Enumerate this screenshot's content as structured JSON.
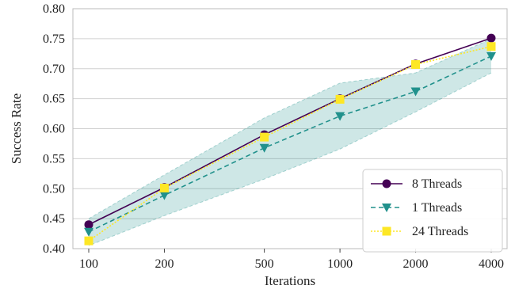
{
  "chart_data": {
    "type": "line",
    "xlabel": "Iterations",
    "ylabel": "Success Rate",
    "x_scale": "log",
    "x": [
      100,
      200,
      500,
      1000,
      2000,
      4000
    ],
    "x_tick_labels": [
      "100",
      "200",
      "500",
      "1000",
      "2000",
      "4000"
    ],
    "ylim": [
      0.4,
      0.8
    ],
    "y_ticks": [
      0.4,
      0.45,
      0.5,
      0.55,
      0.6,
      0.65,
      0.7,
      0.75,
      0.8
    ],
    "y_tick_labels": [
      "0.40",
      "0.45",
      "0.50",
      "0.55",
      "0.60",
      "0.65",
      "0.70",
      "0.75",
      "0.80"
    ],
    "grid": "horizontal",
    "legend_position": "bottom-right",
    "series": [
      {
        "name": "8 Threads",
        "values": [
          0.44,
          0.502,
          0.59,
          0.65,
          0.708,
          0.751
        ],
        "color": "#440154",
        "line_style": "solid",
        "marker": "circle"
      },
      {
        "name": "1 Threads",
        "values": [
          0.428,
          0.489,
          0.568,
          0.621,
          0.662,
          0.721
        ],
        "color": "#21918c",
        "line_style": "dashed",
        "marker": "triangle-down",
        "band": {
          "lower": [
            0.405,
            0.455,
            0.516,
            0.566,
            0.628,
            0.693
          ],
          "upper": [
            0.45,
            0.523,
            0.618,
            0.676,
            0.693,
            0.75
          ],
          "color": "#21918c"
        }
      },
      {
        "name": "24 Threads",
        "values": [
          0.413,
          0.501,
          0.586,
          0.649,
          0.707,
          0.737
        ],
        "color": "#fde725",
        "line_style": "dotted",
        "marker": "square"
      }
    ]
  }
}
